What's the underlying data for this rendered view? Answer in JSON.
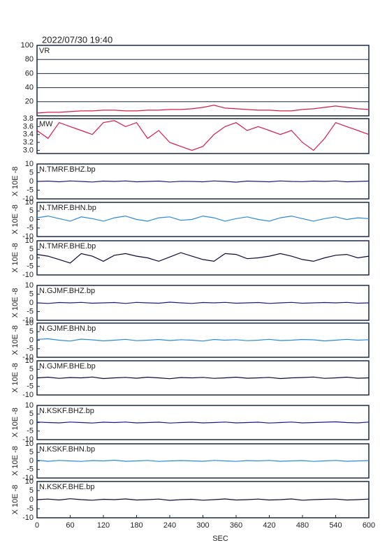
{
  "chart_data": [
    {
      "type": "line",
      "title": "2022/07/30 19:40",
      "x": [
        0,
        20,
        40,
        60,
        80,
        100,
        120,
        140,
        160,
        180,
        200,
        220,
        240,
        260,
        280,
        300,
        320,
        340,
        360,
        380,
        400,
        420,
        440,
        460,
        480,
        500,
        520,
        540,
        560,
        580,
        600
      ],
      "xlim": [
        0,
        600
      ],
      "ylim": [
        0,
        100
      ],
      "yticks": [
        20,
        40,
        60,
        80,
        100
      ],
      "grid": true,
      "series": [
        {
          "name": "VR",
          "color": "#d81b4a",
          "values": [
            4,
            5,
            5,
            6,
            7,
            7,
            8,
            8,
            7,
            7,
            8,
            8,
            9,
            9,
            10,
            12,
            15,
            11,
            10,
            9,
            8,
            8,
            7,
            7,
            9,
            10,
            12,
            14,
            12,
            10,
            9
          ]
        }
      ]
    },
    {
      "type": "line",
      "x": [
        0,
        20,
        40,
        60,
        80,
        100,
        120,
        140,
        160,
        180,
        200,
        220,
        240,
        260,
        280,
        300,
        320,
        340,
        360,
        380,
        400,
        420,
        440,
        460,
        480,
        500,
        520,
        540,
        560,
        580,
        600
      ],
      "xlim": [
        0,
        600
      ],
      "ylim": [
        2.92,
        3.8
      ],
      "yticks": [
        {
          "value": 3,
          "label": "3.0"
        },
        3.2,
        3.4,
        3.6,
        3.8
      ],
      "grid": false,
      "series": [
        {
          "name": "MW",
          "color": "#d81b4a",
          "values": [
            3.5,
            3.3,
            3.7,
            3.6,
            3.5,
            3.4,
            3.7,
            3.75,
            3.6,
            3.7,
            3.3,
            3.5,
            3.2,
            3.1,
            3.0,
            3.1,
            3.4,
            3.6,
            3.7,
            3.5,
            3.6,
            3.5,
            3.4,
            3.5,
            3.2,
            3.0,
            3.3,
            3.7,
            3.6,
            3.5,
            3.4
          ]
        }
      ]
    },
    {
      "type": "line",
      "ylabel": "X 10E -8",
      "x": [
        0,
        20,
        40,
        60,
        80,
        100,
        120,
        140,
        160,
        180,
        200,
        220,
        240,
        260,
        280,
        300,
        320,
        340,
        360,
        380,
        400,
        420,
        440,
        460,
        480,
        500,
        520,
        540,
        560,
        580,
        600
      ],
      "xlim": [
        0,
        600
      ],
      "ylim": [
        -10,
        10
      ],
      "yticks": [
        -10,
        -5,
        0,
        5,
        10
      ],
      "grid": false,
      "series": [
        {
          "name": "N.TMRF.BHZ.bp",
          "color": "#1a1a8c",
          "values": [
            0,
            0.2,
            -0.2,
            0.3,
            0,
            -0.3,
            0.2,
            0,
            0.3,
            -0.2,
            0,
            0.2,
            -0.3,
            0.1,
            0,
            -0.2,
            0.3,
            0,
            -0.4,
            0.2,
            0,
            -0.2,
            0.3,
            0,
            -0.1,
            0.2,
            0,
            0.3,
            -0.2,
            0,
            0.2
          ]
        }
      ]
    },
    {
      "type": "line",
      "ylabel": "X 10E -8",
      "x": [
        0,
        20,
        40,
        60,
        80,
        100,
        120,
        140,
        160,
        180,
        200,
        220,
        240,
        260,
        280,
        300,
        320,
        340,
        360,
        380,
        400,
        420,
        440,
        460,
        480,
        500,
        520,
        540,
        560,
        580,
        600
      ],
      "xlim": [
        0,
        600
      ],
      "ylim": [
        -10,
        10
      ],
      "yticks": [
        -10,
        -5,
        0,
        5,
        10
      ],
      "grid": false,
      "series": [
        {
          "name": "N.TMRF.BHN.bp",
          "color": "#2a8ad8",
          "values": [
            1,
            2,
            0.5,
            -1,
            1.5,
            0.5,
            -1,
            1,
            2,
            0,
            -1,
            1,
            1.5,
            -0.5,
            0,
            2,
            1,
            -1,
            0.5,
            1.5,
            0,
            -1,
            1,
            2,
            0.5,
            -1,
            0.5,
            1.5,
            0,
            1,
            0.5
          ]
        }
      ]
    },
    {
      "type": "line",
      "ylabel": "X 10E -8",
      "x": [
        0,
        20,
        40,
        60,
        80,
        100,
        120,
        140,
        160,
        180,
        200,
        220,
        240,
        260,
        280,
        300,
        320,
        340,
        360,
        380,
        400,
        420,
        440,
        460,
        480,
        500,
        520,
        540,
        560,
        580,
        600
      ],
      "xlim": [
        0,
        600
      ],
      "ylim": [
        -10,
        10
      ],
      "yticks": [
        -10,
        -5,
        0,
        5,
        10
      ],
      "grid": false,
      "series": [
        {
          "name": "N.TMRF.BHE.bp",
          "color": "#0a0a3a",
          "values": [
            2,
            1,
            -1,
            -3,
            2.5,
            1,
            -2,
            1.5,
            2.5,
            1,
            0,
            -2,
            0.5,
            3,
            1,
            -1,
            -2,
            2.5,
            2,
            -0.5,
            0,
            1,
            2.5,
            1,
            -1,
            -2,
            0,
            1.5,
            2,
            0,
            1
          ]
        }
      ]
    },
    {
      "type": "line",
      "ylabel": "X 10E -8",
      "x": [
        0,
        20,
        40,
        60,
        80,
        100,
        120,
        140,
        160,
        180,
        200,
        220,
        240,
        260,
        280,
        300,
        320,
        340,
        360,
        380,
        400,
        420,
        440,
        460,
        480,
        500,
        520,
        540,
        560,
        580,
        600
      ],
      "xlim": [
        0,
        600
      ],
      "ylim": [
        -10,
        10
      ],
      "yticks": [
        -10,
        -5,
        0,
        5,
        10
      ],
      "grid": false,
      "series": [
        {
          "name": "N.GJMF.BHZ.bp",
          "color": "#1a1a8c",
          "values": [
            0,
            -0.3,
            0.2,
            0,
            0.3,
            -0.2,
            0,
            0.2,
            -0.3,
            0.3,
            0,
            -0.2,
            0.4,
            0,
            -0.3,
            0.2,
            0,
            0.3,
            -0.2,
            0,
            0.2,
            -0.3,
            0,
            0.3,
            -0.2,
            0,
            0.2,
            0,
            0.3,
            -0.2,
            0
          ]
        }
      ]
    },
    {
      "type": "line",
      "ylabel": "X 10E -8",
      "x": [
        0,
        20,
        40,
        60,
        80,
        100,
        120,
        140,
        160,
        180,
        200,
        220,
        240,
        260,
        280,
        300,
        320,
        340,
        360,
        380,
        400,
        420,
        440,
        460,
        480,
        500,
        520,
        540,
        560,
        580,
        600
      ],
      "xlim": [
        0,
        600
      ],
      "ylim": [
        -10,
        10
      ],
      "yticks": [
        -10,
        -5,
        0,
        5,
        10
      ],
      "grid": false,
      "series": [
        {
          "name": "N.GJMF.BHN.bp",
          "color": "#2a8ad8",
          "values": [
            0.5,
            0.8,
            0,
            -0.5,
            0.6,
            0.2,
            -0.4,
            0,
            0.5,
            -0.3,
            0,
            0.4,
            -0.2,
            0.3,
            0,
            -0.5,
            0.4,
            0,
            0.3,
            -0.3,
            0,
            0.5,
            -0.2,
            0,
            0.4,
            0.2,
            -0.4,
            0,
            0.5,
            0,
            0.3
          ]
        }
      ]
    },
    {
      "type": "line",
      "ylabel": "X 10E -8",
      "x": [
        0,
        20,
        40,
        60,
        80,
        100,
        120,
        140,
        160,
        180,
        200,
        220,
        240,
        260,
        280,
        300,
        320,
        340,
        360,
        380,
        400,
        420,
        440,
        460,
        480,
        500,
        520,
        540,
        560,
        580,
        600
      ],
      "xlim": [
        0,
        600
      ],
      "ylim": [
        -10,
        10
      ],
      "yticks": [
        -10,
        -5,
        0,
        5,
        10
      ],
      "grid": false,
      "series": [
        {
          "name": "N.GJMF.BHE.bp",
          "color": "#0a0a3a",
          "values": [
            0,
            0.4,
            -0.3,
            0.2,
            0,
            0.5,
            -0.4,
            0,
            0.3,
            -0.2,
            0.4,
            0,
            -0.5,
            0.2,
            0,
            0.3,
            -0.3,
            0,
            0.4,
            -0.2,
            0,
            0.3,
            -0.4,
            0,
            0.2,
            0.5,
            -0.3,
            0,
            0.4,
            -0.2,
            0
          ]
        }
      ]
    },
    {
      "type": "line",
      "ylabel": "X 10E -8",
      "x": [
        0,
        20,
        40,
        60,
        80,
        100,
        120,
        140,
        160,
        180,
        200,
        220,
        240,
        260,
        280,
        300,
        320,
        340,
        360,
        380,
        400,
        420,
        440,
        460,
        480,
        500,
        520,
        540,
        560,
        580,
        600
      ],
      "xlim": [
        0,
        600
      ],
      "ylim": [
        -10,
        10
      ],
      "yticks": [
        -10,
        -5,
        0,
        5,
        10
      ],
      "grid": false,
      "series": [
        {
          "name": "N.KSKF.BHZ.bp",
          "color": "#1a1a8c",
          "values": [
            0.3,
            0,
            -0.2,
            0.3,
            0,
            -0.3,
            0.2,
            0,
            0.3,
            -0.2,
            0,
            0.2,
            -0.3,
            0,
            0.2,
            -0.2,
            0,
            0.3,
            -0.2,
            0,
            0.2,
            -0.3,
            0,
            0.3,
            -0.2,
            0,
            0.2,
            0.4,
            0,
            -0.2,
            0.3
          ]
        }
      ]
    },
    {
      "type": "line",
      "ylabel": "X 10E -8",
      "x": [
        0,
        20,
        40,
        60,
        80,
        100,
        120,
        140,
        160,
        180,
        200,
        220,
        240,
        260,
        280,
        300,
        320,
        340,
        360,
        380,
        400,
        420,
        440,
        460,
        480,
        500,
        520,
        540,
        560,
        580,
        600
      ],
      "xlim": [
        0,
        600
      ],
      "ylim": [
        -10,
        10
      ],
      "yticks": [
        -10,
        -5,
        0,
        5,
        10
      ],
      "grid": false,
      "series": [
        {
          "name": "N.KSKF.BHN.bp",
          "color": "#2a8ad8",
          "values": [
            0.4,
            -0.2,
            0.3,
            0,
            -0.3,
            0.2,
            0,
            0.4,
            -0.2,
            0,
            0.3,
            -0.3,
            0,
            0.2,
            0,
            -0.2,
            0.3,
            0,
            -0.3,
            0.2,
            0,
            0.3,
            -0.2,
            0,
            0.2,
            -0.3,
            0,
            0.3,
            -0.2,
            0,
            0.2
          ]
        }
      ]
    },
    {
      "type": "line",
      "ylabel": "X 10E -8",
      "xlabel": "SEC",
      "x": [
        0,
        20,
        40,
        60,
        80,
        100,
        120,
        140,
        160,
        180,
        200,
        220,
        240,
        260,
        280,
        300,
        320,
        340,
        360,
        380,
        400,
        420,
        440,
        460,
        480,
        500,
        520,
        540,
        560,
        580,
        600
      ],
      "xlim": [
        0,
        600
      ],
      "xticks": [
        0,
        60,
        120,
        180,
        240,
        300,
        360,
        420,
        480,
        540,
        600
      ],
      "ylim": [
        -10,
        10
      ],
      "yticks": [
        -10,
        -5,
        0,
        5,
        10
      ],
      "grid": false,
      "series": [
        {
          "name": "N.KSKF.BHE.bp",
          "color": "#0a0a3a",
          "values": [
            0,
            0.3,
            -0.2,
            0.5,
            0,
            -0.3,
            0.2,
            0,
            0.4,
            -0.2,
            0,
            0.3,
            -0.4,
            0,
            0.2,
            -0.3,
            0,
            0.4,
            -0.2,
            0,
            0.3,
            -0.2,
            0,
            0.4,
            -0.3,
            0,
            0.2,
            0.3,
            -0.2,
            0,
            0.3
          ]
        }
      ]
    }
  ]
}
